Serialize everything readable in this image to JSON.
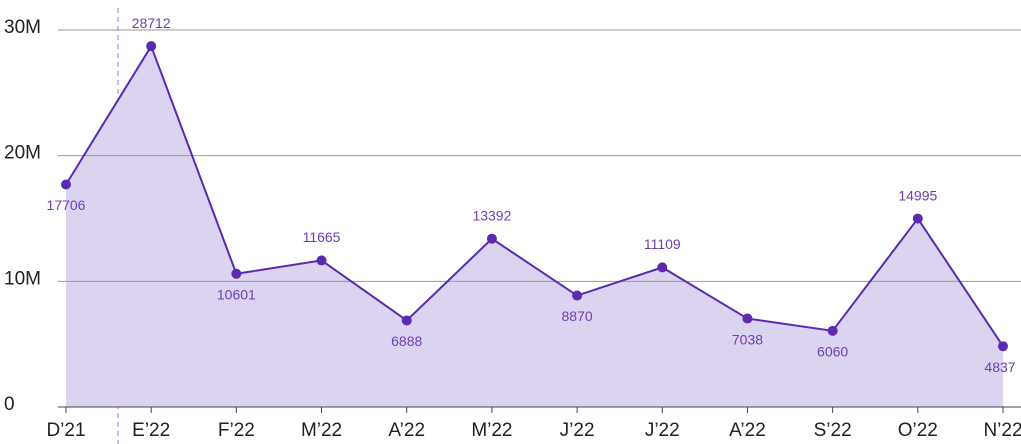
{
  "chart_data": {
    "type": "area",
    "categories": [
      "D’21",
      "E’22",
      "F’22",
      "M’22",
      "A’22",
      "M’22",
      "J’22",
      "J’22",
      "A’22",
      "S’22",
      "O’22",
      "N’22"
    ],
    "series": [
      {
        "color": "#5b2ab0",
        "values": [
          17.706,
          28.712,
          10.601,
          11.665,
          6.888,
          13.392,
          8.87,
          11.109,
          7.038,
          6.06,
          14.995,
          4.837
        ],
        "value_labels": [
          "17706",
          "28712",
          "10601",
          "11665",
          "6888",
          "13392",
          "8870",
          "11109",
          "7038",
          "6060",
          "14995",
          "4837"
        ]
      }
    ],
    "ylim": [
      0,
      30
    ],
    "yticks": [
      0,
      {
        "value": 10,
        "label": "10M"
      },
      {
        "value": 20,
        "label": "20M"
      },
      {
        "value": 30,
        "label": "30M"
      }
    ],
    "grid": true
  }
}
